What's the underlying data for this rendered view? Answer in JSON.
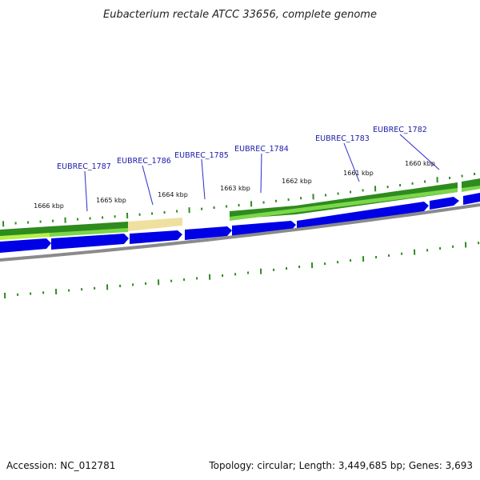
{
  "title": "Eubacterium rectale ATCC 33656, complete genome",
  "footer": {
    "accession": "Accession: NC_012781",
    "info": "Topology: circular; Length: 3,449,685 bp; Genes: 3,693"
  },
  "colors": {
    "forward_cds": "#0000e6",
    "reverse_band": "#2e8b1e",
    "reverse_band_light": "#7bd64a",
    "highlight_band": "#efe0a0",
    "lime": "#b6f04a",
    "backbone": "#8a8a8a",
    "ticks": "#2f8a20",
    "gene_labels": "#1a1aa8"
  },
  "genes": [
    {
      "label": "EUBREC_1787"
    },
    {
      "label": "EUBREC_1786"
    },
    {
      "label": "EUBREC_1785"
    },
    {
      "label": "EUBREC_1784"
    },
    {
      "label": "EUBREC_1783"
    },
    {
      "label": "EUBREC_1782"
    }
  ],
  "scale_labels": [
    "1666 kbp",
    "1665 kbp",
    "1664 kbp",
    "1663 kbp",
    "1662 kbp",
    "1661 kbp",
    "1660 kbp"
  ]
}
